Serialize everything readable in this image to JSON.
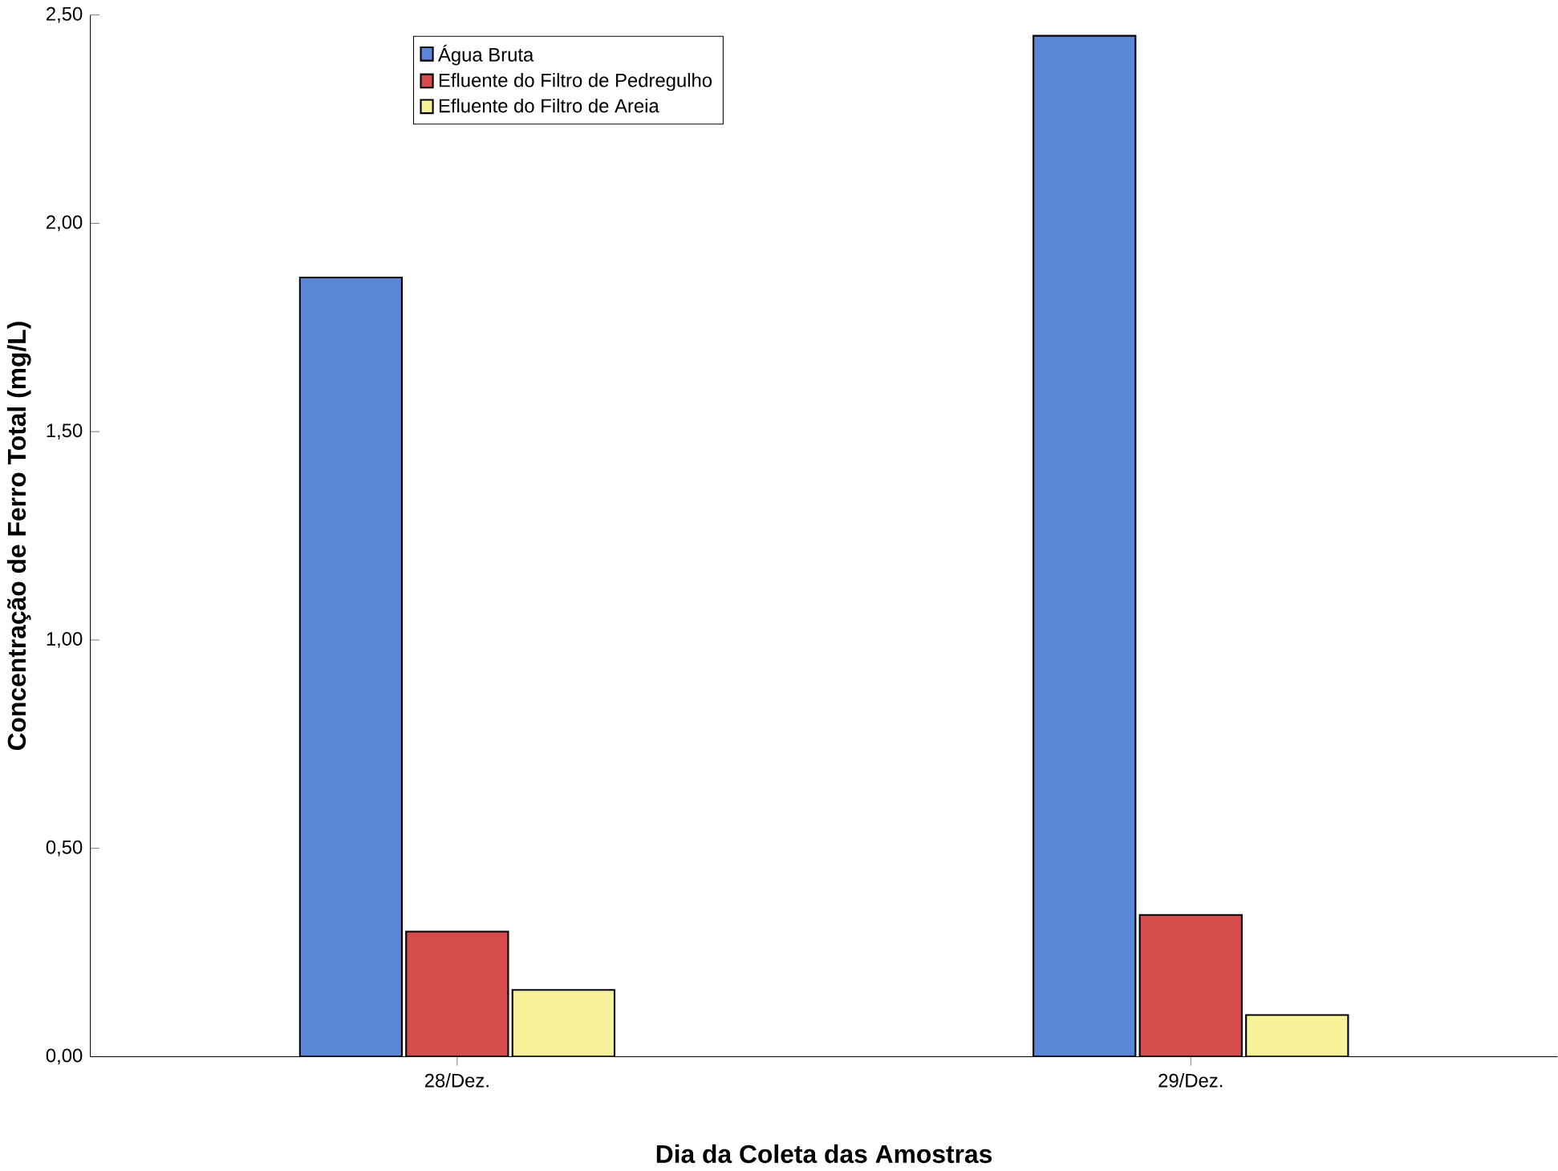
{
  "chart_data": {
    "type": "bar",
    "xlabel": "Dia da Coleta das Amostras",
    "ylabel": "Concentração de Ferro Total (mg/L)",
    "categories": [
      "28/Dez.",
      "29/Dez."
    ],
    "series": [
      {
        "name": "Água Bruta",
        "color": "#5b86d8",
        "values": [
          1.87,
          2.45
        ]
      },
      {
        "name": "Efluente do Filtro de Pedregulho",
        "color": "#d64b4b",
        "values": [
          0.3,
          0.34
        ]
      },
      {
        "name": "Efluente do Filtro de Areia",
        "color": "#f8f29a",
        "values": [
          0.16,
          0.1
        ]
      }
    ],
    "ylim": [
      0,
      2.5
    ],
    "yticks": [
      {
        "value": 0,
        "label": "0,00"
      },
      {
        "value": 0.5,
        "label": "0,50"
      },
      {
        "value": 1,
        "label": "1,00"
      },
      {
        "value": 1.5,
        "label": "1,50"
      },
      {
        "value": 2,
        "label": "2,00"
      },
      {
        "value": 2.5,
        "label": "2,50"
      }
    ],
    "legend": "top left"
  }
}
